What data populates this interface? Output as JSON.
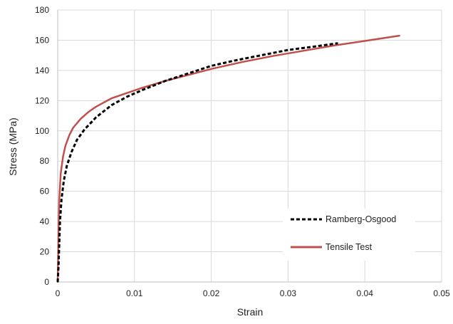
{
  "chart_data": {
    "type": "line",
    "xlabel": "Strain",
    "ylabel": "Stress (MPa)",
    "xlim": [
      0,
      0.05
    ],
    "ylim": [
      0,
      180
    ],
    "x_ticks": [
      "0",
      "0.01",
      "0.02",
      "0.03",
      "0.04",
      "0.05"
    ],
    "y_ticks": [
      "0",
      "20",
      "40",
      "60",
      "80",
      "100",
      "120",
      "140",
      "160",
      "180"
    ],
    "grid": true,
    "legend_position": "bottom-right",
    "series": [
      {
        "name": "Ramberg-Osgood",
        "color": "#000000",
        "style": "dashed",
        "x": [
          0,
          0.0001,
          0.0002,
          0.0003,
          0.0005,
          0.0008,
          0.0012,
          0.0018,
          0.0025,
          0.0035,
          0.005,
          0.007,
          0.009,
          0.011,
          0.014,
          0.017,
          0.02,
          0.023,
          0.026,
          0.03,
          0.033,
          0.0365
        ],
        "y": [
          0,
          10,
          25,
          40,
          55,
          67,
          77,
          86,
          94,
          101,
          109,
          117,
          122.5,
          127,
          133,
          138,
          143,
          146.5,
          149.5,
          153.5,
          155.5,
          158
        ]
      },
      {
        "name": "Tensile Test",
        "color": "#c0504d",
        "style": "solid",
        "x": [
          0,
          0.0001,
          0.0002,
          0.0004,
          0.0007,
          0.001,
          0.0015,
          0.002,
          0.003,
          0.004,
          0.005,
          0.007,
          0.009,
          0.011,
          0.014,
          0.017,
          0.02,
          0.024,
          0.028,
          0.032,
          0.036,
          0.04,
          0.0445
        ],
        "y": [
          0,
          30,
          55,
          72,
          83,
          90,
          97,
          102,
          108,
          112.5,
          116,
          121.5,
          125,
          128.5,
          133,
          137,
          141,
          145.5,
          149.5,
          153,
          156.5,
          159.5,
          163
        ]
      }
    ]
  }
}
